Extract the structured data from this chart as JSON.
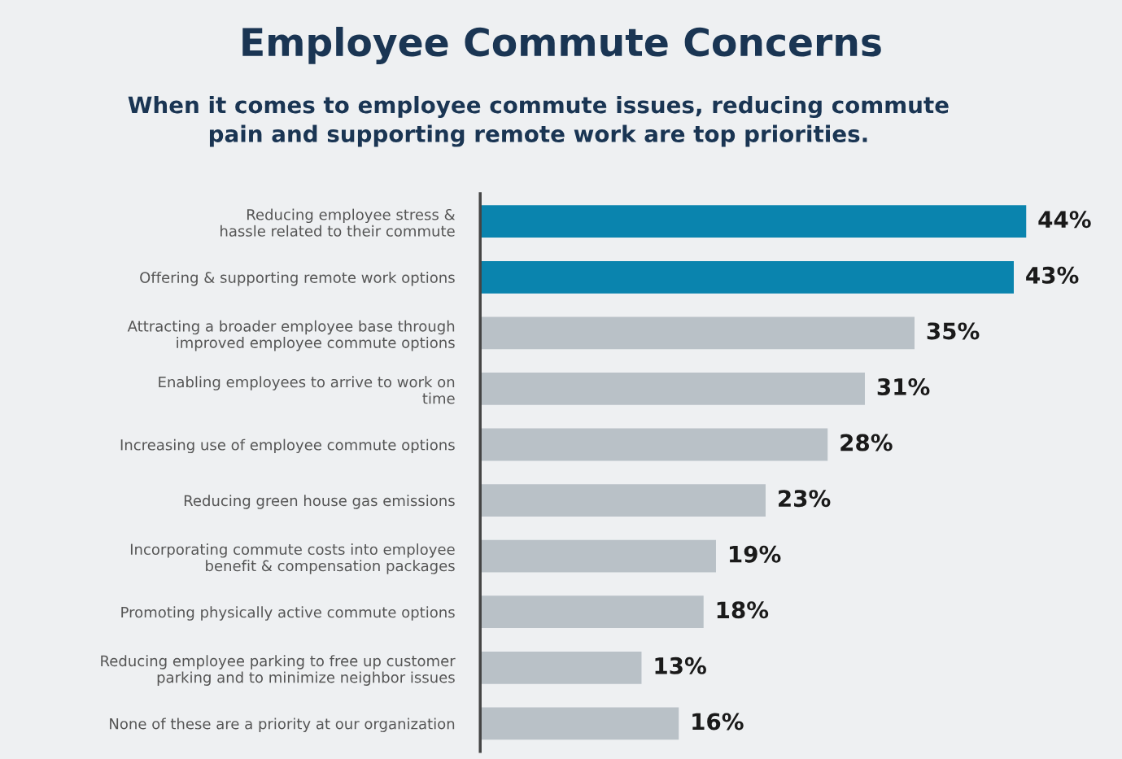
{
  "chart_data": {
    "type": "bar",
    "orientation": "horizontal",
    "title": "Employee Commute Concerns",
    "subtitle": "When it comes to employee commute issues, reducing commute\npain and supporting remote work are top priorities.",
    "categories": [
      "Reducing employee stress &\nhassle related to their commute",
      "Offering & supporting remote work options",
      "Attracting a broader employee base through\nimproved employee commute options",
      "Enabling employees to arrive to work on\ntime",
      "Increasing use of employee commute options",
      "Reducing green house gas emissions",
      "Incorporating commute costs into employee\nbenefit & compensation packages",
      "Promoting physically active commute options",
      "Reducing employee parking to free up customer\nparking and to minimize neighbor issues",
      "None of these are a priority at our organization"
    ],
    "values": [
      44,
      43,
      35,
      31,
      28,
      23,
      19,
      18,
      13,
      16
    ],
    "value_labels": [
      "44%",
      "43%",
      "35%",
      "31%",
      "28%",
      "23%",
      "19%",
      "18%",
      "13%",
      "16%"
    ],
    "colors": [
      "#0a84ae",
      "#0a84ae",
      "#b9c1c7",
      "#b9c1c7",
      "#b9c1c7",
      "#b9c1c7",
      "#b9c1c7",
      "#b9c1c7",
      "#b9c1c7",
      "#b9c1c7"
    ],
    "tick_labels": "y",
    "grid": false,
    "legend": false
  }
}
